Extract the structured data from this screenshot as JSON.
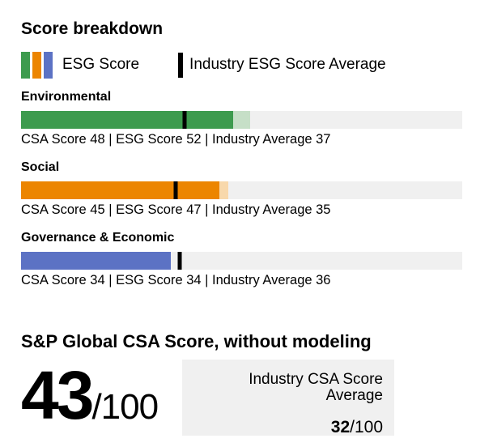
{
  "title": "Score breakdown",
  "legend": {
    "esg_label": "ESG Score",
    "industry_label": "Industry ESG Score Average"
  },
  "colors": {
    "marker": "#000000",
    "track": "#f0f0f0"
  },
  "chart_data": {
    "type": "bar",
    "orientation": "horizontal",
    "xlim": [
      0,
      100
    ],
    "title": "Score breakdown",
    "series": [
      {
        "name": "Environmental",
        "csa_score": 48,
        "esg_score": 52,
        "industry_average": 37,
        "caption": "CSA Score 48 | ESG Score 52 | Industry Average 37",
        "color": "#3d9b4e",
        "color_light": "#c6dfc7"
      },
      {
        "name": "Social",
        "csa_score": 45,
        "esg_score": 47,
        "industry_average": 35,
        "caption": "CSA Score 45 | ESG Score 47 | Industry Average 35",
        "color": "#ec8500",
        "color_light": "#f8d8ab"
      },
      {
        "name": "Governance & Economic",
        "csa_score": 34,
        "esg_score": 34,
        "industry_average": 36,
        "caption": "CSA Score 34 | ESG Score 34 | Industry Average 36",
        "color": "#5c72c4"
      }
    ]
  },
  "csa_section": {
    "heading": "S&P Global CSA Score, without modeling",
    "score": "43",
    "score_denominator": "/100",
    "industry_box": {
      "label": "Industry CSA Score Average",
      "value": "32",
      "denominator": "/100"
    }
  }
}
